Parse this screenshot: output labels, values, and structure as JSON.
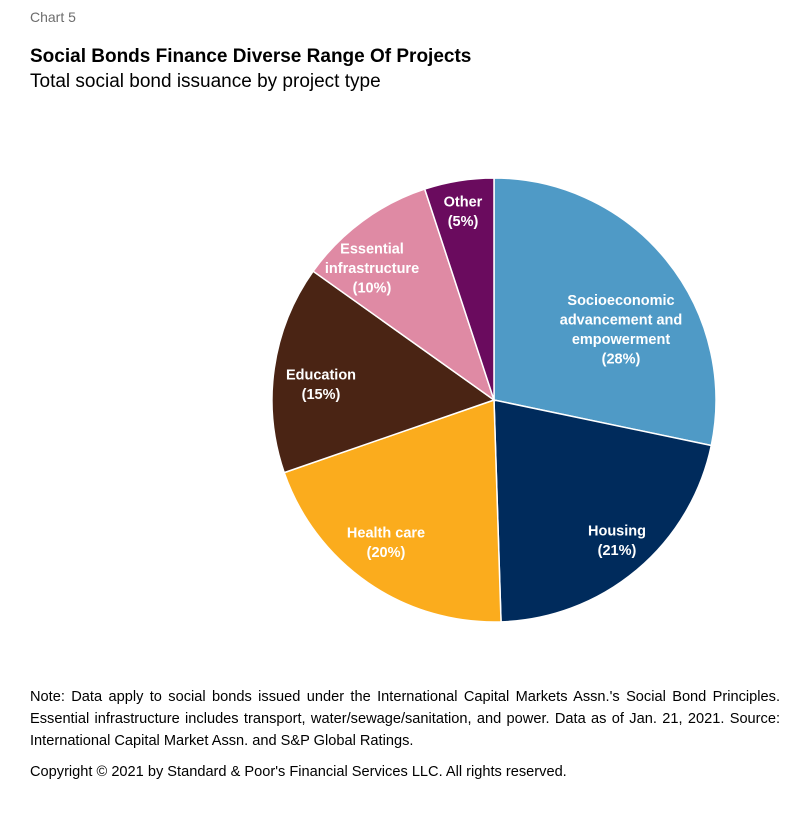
{
  "header": {
    "chart_label": "Chart 5",
    "title": "Social Bonds Finance Diverse Range Of Projects",
    "subtitle": "Total social bond issuance by project type"
  },
  "chart_data": {
    "type": "pie",
    "title": "Social Bonds Finance Diverse Range Of Projects",
    "subtitle": "Total social bond issuance by project type",
    "unit": "%",
    "start_angle_deg": 0,
    "direction": "clockwise",
    "slices": [
      {
        "name": "Socioeconomic advancement and empowerment",
        "value": 28,
        "color": "#4f9ac6",
        "label_lines": [
          "Socioeconomic",
          "advancement and",
          "empowerment",
          "(28%)"
        ]
      },
      {
        "name": "Housing",
        "value": 21,
        "color": "#002b5c",
        "label_lines": [
          "Housing",
          "(21%)"
        ]
      },
      {
        "name": "Health care",
        "value": 20,
        "color": "#fbac1d",
        "label_lines": [
          "Health care",
          "(20%)"
        ]
      },
      {
        "name": "Education",
        "value": 15,
        "color": "#4a2414",
        "label_lines": [
          "Education",
          "(15%)"
        ]
      },
      {
        "name": "Essential infrastructure",
        "value": 10,
        "color": "#df8aa4",
        "label_lines": [
          "Essential",
          "infrastructure",
          "(10%)"
        ]
      },
      {
        "name": "Other",
        "value": 5,
        "color": "#6a0b5e",
        "label_lines": [
          "Other",
          "(5%)"
        ]
      }
    ]
  },
  "footer": {
    "note": "Note: Data apply to social bonds issued under the International Capital Markets Assn.'s Social Bond Principles. Essential infrastructure includes transport, water/sewage/sanitation, and power. Data as of Jan. 21, 2021. Source: International Capital Market Assn. and S&P Global Ratings.",
    "copyright": "Copyright © 2021 by Standard & Poor's Financial Services LLC. All rights reserved."
  }
}
